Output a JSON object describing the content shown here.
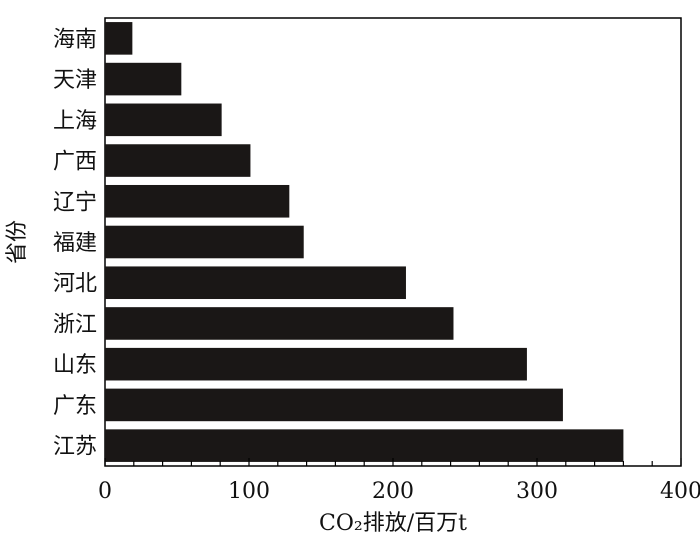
{
  "chart_data": {
    "type": "bar",
    "orientation": "horizontal",
    "categories": [
      "海南",
      "天津",
      "上海",
      "广西",
      "辽宁",
      "福建",
      "河北",
      "浙江",
      "山东",
      "广东",
      "江苏"
    ],
    "values": [
      19,
      53,
      81,
      101,
      128,
      138,
      209,
      242,
      293,
      318,
      360
    ],
    "xlabel": "CO₂排放/百万t",
    "ylabel": "省份",
    "xlim": [
      0,
      400
    ],
    "xticks": [
      "0",
      "100",
      "200",
      "300",
      "400"
    ],
    "grid": false,
    "bar_color": "#1a1716"
  }
}
